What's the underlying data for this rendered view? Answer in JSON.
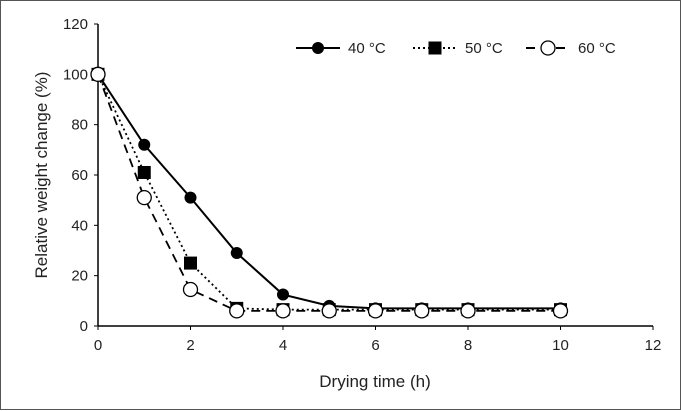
{
  "chart_data": {
    "type": "line",
    "title": "",
    "xlabel": "Drying time (h)",
    "ylabel": "Relative weight change (%)",
    "xlim": [
      0,
      12
    ],
    "ylim": [
      0,
      120
    ],
    "xticks": [
      0,
      2,
      4,
      6,
      8,
      10,
      12
    ],
    "yticks": [
      0,
      20,
      40,
      60,
      80,
      100,
      120
    ],
    "grid": false,
    "legend_position": "top-right",
    "x": [
      0,
      1,
      2,
      3,
      4,
      5,
      6,
      7,
      8,
      10
    ],
    "series": [
      {
        "name": "40 °C",
        "marker": "filled-circle",
        "line": "solid",
        "values": [
          100,
          72,
          51,
          29,
          12.5,
          8,
          7,
          7,
          7,
          7
        ]
      },
      {
        "name": "50 °C",
        "marker": "filled-square",
        "line": "dotted",
        "values": [
          100,
          61,
          25,
          7,
          6.5,
          6.5,
          6.5,
          6.5,
          6.5,
          6.5
        ]
      },
      {
        "name": "60 °C",
        "marker": "open-circle",
        "line": "dashed",
        "values": [
          100,
          51,
          14.5,
          6,
          6,
          6,
          6,
          6,
          6,
          6
        ]
      }
    ],
    "colors": {
      "line": "#000000",
      "text": "#222222"
    }
  }
}
